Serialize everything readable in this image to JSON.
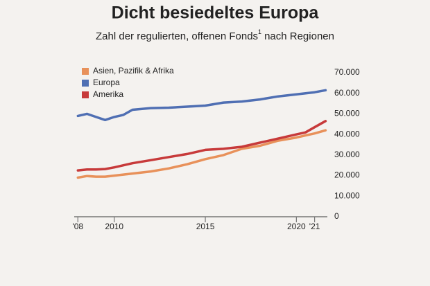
{
  "chart_data": {
    "type": "line",
    "title": "Dicht besiedeltes Europa",
    "subtitle": "Zahl der regulierten, offenen Fonds",
    "footnote_mark": "1",
    "subtitle_end": "nach Regionen",
    "x": [
      2008,
      2008.5,
      2009,
      2009.5,
      2010,
      2010.5,
      2011,
      2012,
      2013,
      2014,
      2015,
      2016,
      2017,
      2018,
      2019,
      2020,
      2020.5,
      2021,
      2021.6
    ],
    "series": [
      {
        "name": "Asien, Pazifik & Afrika",
        "color": "#e8915a",
        "values": [
          19000,
          19800,
          19500,
          19500,
          20000,
          20500,
          21000,
          22000,
          23500,
          25500,
          28000,
          30000,
          33000,
          34500,
          37000,
          38500,
          39500,
          40500,
          42000
        ]
      },
      {
        "name": "Europa",
        "color": "#4f6fb3",
        "values": [
          49000,
          50000,
          48500,
          47000,
          48500,
          49500,
          52000,
          52800,
          53000,
          53500,
          54000,
          55500,
          56000,
          57000,
          58500,
          59500,
          60000,
          60500,
          61500
        ]
      },
      {
        "name": "Amerika",
        "color": "#c73a3a",
        "values": [
          22500,
          23000,
          23000,
          23200,
          24000,
          25000,
          26000,
          27500,
          29000,
          30500,
          32500,
          33000,
          34000,
          36000,
          38000,
          40000,
          41000,
          43500,
          46500
        ]
      }
    ],
    "xlim": [
      2007.8,
      2021.7
    ],
    "xticks": [
      {
        "value": 2008,
        "label": "'08"
      },
      2010,
      2015,
      2020,
      {
        "value": 2021,
        "label": "'21"
      }
    ],
    "ylim": [
      0,
      70000
    ],
    "yticks": [
      0,
      {
        "value": 10000,
        "label": "10.000"
      },
      {
        "value": 20000,
        "label": "20.000"
      },
      {
        "value": 30000,
        "label": "30.000"
      },
      {
        "value": 40000,
        "label": "40.000"
      },
      {
        "value": 50000,
        "label": "50.000"
      },
      {
        "value": 60000,
        "label": "60.000"
      },
      {
        "value": 70000,
        "label": "70.000"
      }
    ],
    "grid": false,
    "legend": "top-left"
  }
}
